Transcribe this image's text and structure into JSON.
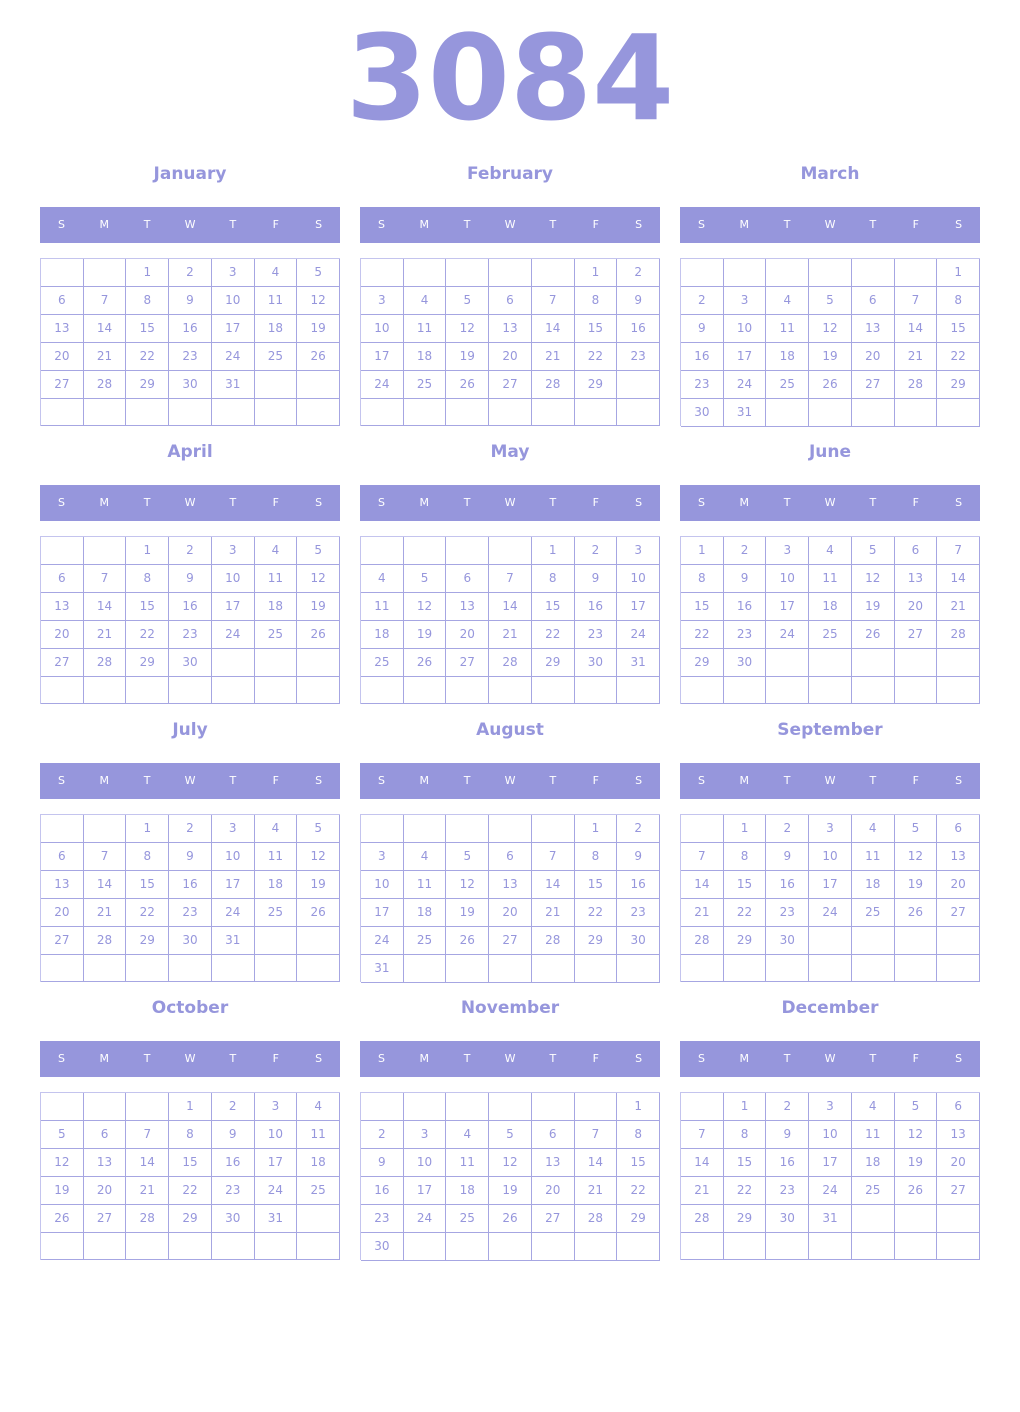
{
  "year": "3084",
  "weekday_labels": [
    "S",
    "M",
    "T",
    "W",
    "T",
    "F",
    "S"
  ],
  "accent_color": "#9696dc",
  "months": [
    {
      "name": "January",
      "start_weekday": 2,
      "days": 31
    },
    {
      "name": "February",
      "start_weekday": 5,
      "days": 29
    },
    {
      "name": "March",
      "start_weekday": 6,
      "days": 31
    },
    {
      "name": "April",
      "start_weekday": 2,
      "days": 30
    },
    {
      "name": "May",
      "start_weekday": 4,
      "days": 31
    },
    {
      "name": "June",
      "start_weekday": 0,
      "days": 30
    },
    {
      "name": "July",
      "start_weekday": 2,
      "days": 31
    },
    {
      "name": "August",
      "start_weekday": 5,
      "days": 31
    },
    {
      "name": "September",
      "start_weekday": 1,
      "days": 30
    },
    {
      "name": "October",
      "start_weekday": 3,
      "days": 31
    },
    {
      "name": "November",
      "start_weekday": 6,
      "days": 30
    },
    {
      "name": "December",
      "start_weekday": 1,
      "days": 31
    }
  ]
}
